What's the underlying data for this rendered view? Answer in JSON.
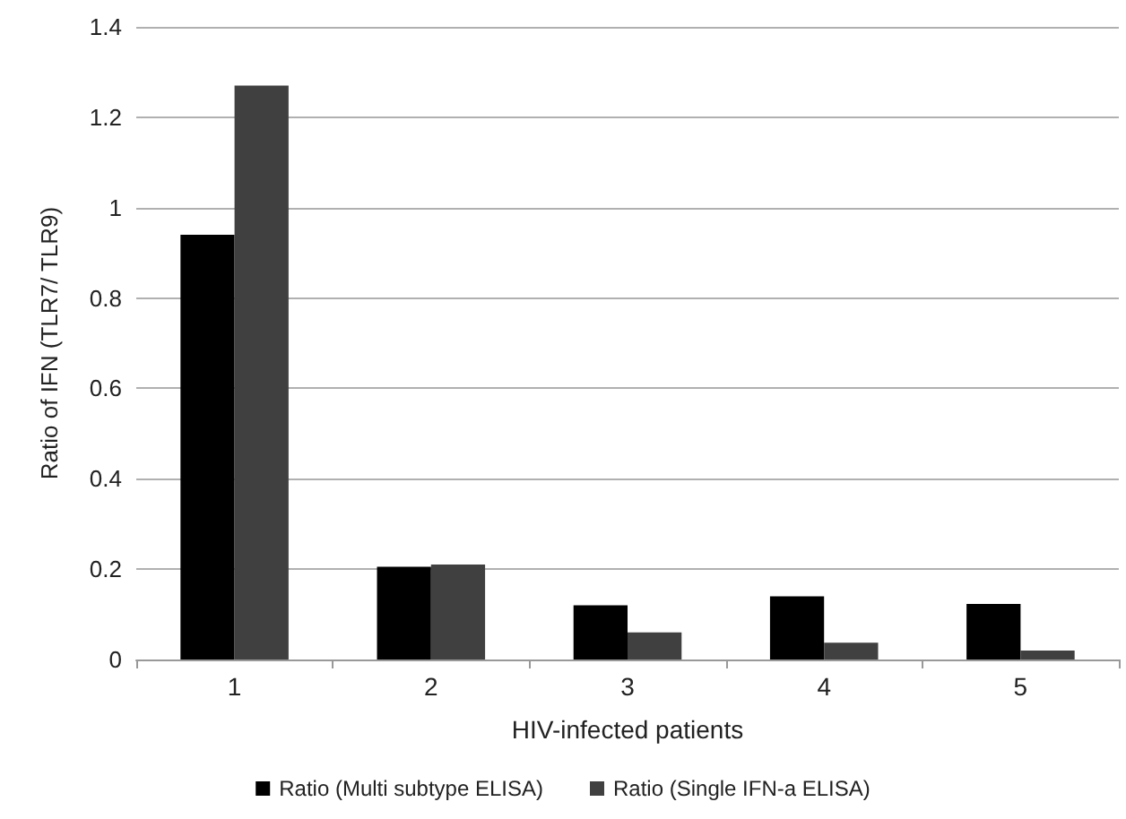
{
  "chart_data": {
    "type": "bar",
    "xlabel": "HIV-infected patients",
    "ylabel": "Ratio of IFN (TLR7/ TLR9)",
    "categories": [
      "1",
      "2",
      "3",
      "4",
      "5"
    ],
    "series": [
      {
        "name": "Ratio (Multi subtype ELISA)",
        "color": "#000000",
        "values": [
          0.94,
          0.205,
          0.12,
          0.14,
          0.123
        ]
      },
      {
        "name": "Ratio (Single IFN-a ELISA)",
        "color": "#404040",
        "values": [
          1.27,
          0.21,
          0.06,
          0.037,
          0.02
        ]
      }
    ],
    "ylim": [
      0,
      1.4
    ],
    "yticks": [
      0,
      0.2,
      0.4,
      0.6,
      0.8,
      1,
      1.2,
      1.4
    ],
    "grid": "y",
    "legend": "bottom"
  }
}
